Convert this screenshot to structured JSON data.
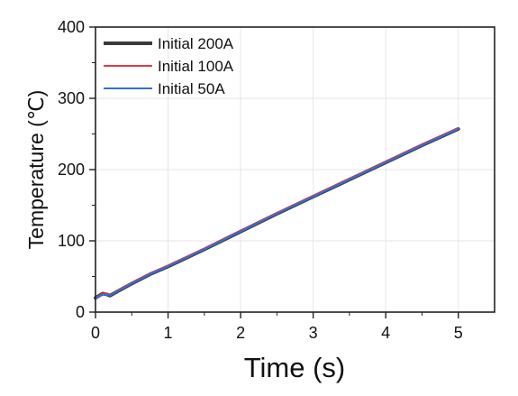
{
  "chart_data": {
    "type": "line",
    "title": "",
    "xlabel": "Time (s)",
    "ylabel": "Temperature (℃)",
    "xlim": [
      0,
      5.5
    ],
    "ylim": [
      0,
      400
    ],
    "xticks": [
      0,
      1,
      2,
      3,
      4,
      5
    ],
    "yticks": [
      0,
      100,
      200,
      300,
      400
    ],
    "xtick_labels": [
      "0",
      "1",
      "2",
      "3",
      "4",
      "5"
    ],
    "ytick_labels": [
      "0",
      "100",
      "200",
      "300",
      "400"
    ],
    "grid": true,
    "legend_position": "top-left",
    "series": [
      {
        "name": "Initial 200A",
        "color": "#3a3a3a",
        "x": [
          0,
          0.05,
          0.1,
          0.15,
          0.2,
          0.3,
          0.5,
          0.75,
          1,
          1.5,
          2,
          2.5,
          3,
          3.5,
          4,
          4.5,
          5
        ],
        "y": [
          20,
          23,
          26,
          25,
          23,
          29,
          40,
          53,
          64,
          88,
          113,
          138,
          162,
          186,
          210,
          234,
          257
        ]
      },
      {
        "name": "Initial 100A",
        "color": "#e8393f",
        "x": [
          0,
          0.05,
          0.1,
          0.15,
          0.2,
          0.3,
          0.5,
          0.75,
          1,
          1.5,
          2,
          2.5,
          3,
          3.5,
          4,
          4.5,
          5
        ],
        "y": [
          20,
          23,
          26,
          26,
          23,
          30,
          41,
          54,
          65,
          89,
          114,
          139,
          163,
          187,
          211,
          235,
          258
        ]
      },
      {
        "name": "Initial 50A",
        "color": "#2f6fd6",
        "x": [
          0,
          0.05,
          0.1,
          0.15,
          0.2,
          0.3,
          0.5,
          0.75,
          1,
          1.5,
          2,
          2.5,
          3,
          3.5,
          4,
          4.5,
          5
        ],
        "y": [
          19,
          22,
          25,
          24,
          23,
          29,
          40,
          53,
          64,
          88,
          113,
          138,
          162,
          186,
          210,
          234,
          257
        ]
      }
    ]
  }
}
